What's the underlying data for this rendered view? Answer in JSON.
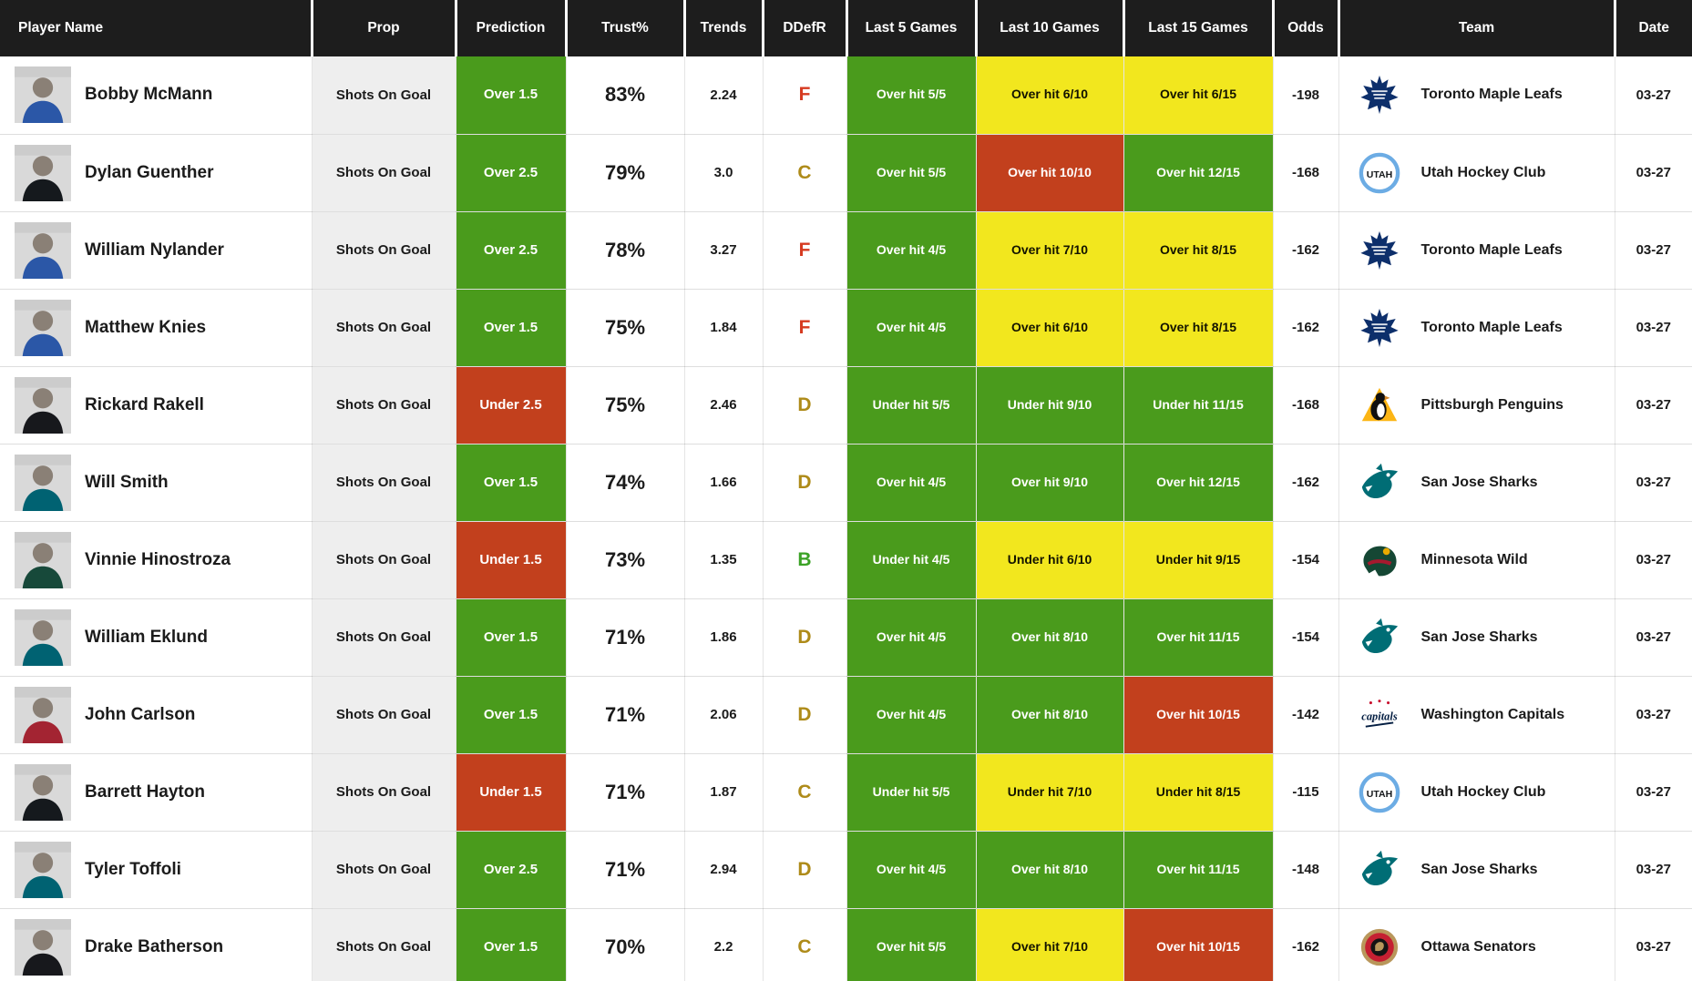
{
  "table": {
    "columns": [
      {
        "key": "player",
        "label": "Player Name"
      },
      {
        "key": "prop",
        "label": "Prop"
      },
      {
        "key": "prediction",
        "label": "Prediction"
      },
      {
        "key": "trust",
        "label": "Trust%"
      },
      {
        "key": "trends",
        "label": "Trends"
      },
      {
        "key": "ddefr",
        "label": "DDefR"
      },
      {
        "key": "last5",
        "label": "Last 5 Games"
      },
      {
        "key": "last10",
        "label": "Last 10 Games"
      },
      {
        "key": "last15",
        "label": "Last 15 Games"
      },
      {
        "key": "odds",
        "label": "Odds"
      },
      {
        "key": "team",
        "label": "Team"
      },
      {
        "key": "date",
        "label": "Date"
      }
    ],
    "rows": [
      {
        "player": "Bobby McMann",
        "prop": "Shots On Goal",
        "prediction": {
          "label": "Over 1.5",
          "color": "green"
        },
        "trust": "83%",
        "trends": "2.24",
        "ddefr": {
          "label": "F",
          "color": "red"
        },
        "last5": {
          "label": "Over hit 5/5",
          "color": "green"
        },
        "last10": {
          "label": "Over hit 6/10",
          "color": "yellow"
        },
        "last15": {
          "label": "Over hit 6/15",
          "color": "yellow"
        },
        "odds": "-198",
        "team": {
          "name": "Toronto Maple Leafs",
          "logo": "toronto"
        },
        "date": "03-27"
      },
      {
        "player": "Dylan Guenther",
        "prop": "Shots On Goal",
        "prediction": {
          "label": "Over 2.5",
          "color": "green"
        },
        "trust": "79%",
        "trends": "3.0",
        "ddefr": {
          "label": "C",
          "color": "gold"
        },
        "last5": {
          "label": "Over hit 5/5",
          "color": "green"
        },
        "last10": {
          "label": "Over hit 10/10",
          "color": "red"
        },
        "last15": {
          "label": "Over hit 12/15",
          "color": "green"
        },
        "odds": "-168",
        "team": {
          "name": "Utah Hockey Club",
          "logo": "utah"
        },
        "date": "03-27"
      },
      {
        "player": "William Nylander",
        "prop": "Shots On Goal",
        "prediction": {
          "label": "Over 2.5",
          "color": "green"
        },
        "trust": "78%",
        "trends": "3.27",
        "ddefr": {
          "label": "F",
          "color": "red"
        },
        "last5": {
          "label": "Over hit 4/5",
          "color": "green"
        },
        "last10": {
          "label": "Over hit 7/10",
          "color": "yellow"
        },
        "last15": {
          "label": "Over hit 8/15",
          "color": "yellow"
        },
        "odds": "-162",
        "team": {
          "name": "Toronto Maple Leafs",
          "logo": "toronto"
        },
        "date": "03-27"
      },
      {
        "player": "Matthew Knies",
        "prop": "Shots On Goal",
        "prediction": {
          "label": "Over 1.5",
          "color": "green"
        },
        "trust": "75%",
        "trends": "1.84",
        "ddefr": {
          "label": "F",
          "color": "red"
        },
        "last5": {
          "label": "Over hit 4/5",
          "color": "green"
        },
        "last10": {
          "label": "Over hit 6/10",
          "color": "yellow"
        },
        "last15": {
          "label": "Over hit 8/15",
          "color": "yellow"
        },
        "odds": "-162",
        "team": {
          "name": "Toronto Maple Leafs",
          "logo": "toronto"
        },
        "date": "03-27"
      },
      {
        "player": "Rickard Rakell",
        "prop": "Shots On Goal",
        "prediction": {
          "label": "Under 2.5",
          "color": "red"
        },
        "trust": "75%",
        "trends": "2.46",
        "ddefr": {
          "label": "D",
          "color": "gold"
        },
        "last5": {
          "label": "Under hit 5/5",
          "color": "green"
        },
        "last10": {
          "label": "Under hit 9/10",
          "color": "green"
        },
        "last15": {
          "label": "Under hit 11/15",
          "color": "green"
        },
        "odds": "-168",
        "team": {
          "name": "Pittsburgh Penguins",
          "logo": "pittsburgh"
        },
        "date": "03-27"
      },
      {
        "player": "Will Smith",
        "prop": "Shots On Goal",
        "prediction": {
          "label": "Over 1.5",
          "color": "green"
        },
        "trust": "74%",
        "trends": "1.66",
        "ddefr": {
          "label": "D",
          "color": "gold"
        },
        "last5": {
          "label": "Over hit 4/5",
          "color": "green"
        },
        "last10": {
          "label": "Over hit 9/10",
          "color": "green"
        },
        "last15": {
          "label": "Over hit 12/15",
          "color": "green"
        },
        "odds": "-162",
        "team": {
          "name": "San Jose Sharks",
          "logo": "sanjose"
        },
        "date": "03-27"
      },
      {
        "player": "Vinnie Hinostroza",
        "prop": "Shots On Goal",
        "prediction": {
          "label": "Under 1.5",
          "color": "red"
        },
        "trust": "73%",
        "trends": "1.35",
        "ddefr": {
          "label": "B",
          "color": "green"
        },
        "last5": {
          "label": "Under hit 4/5",
          "color": "green"
        },
        "last10": {
          "label": "Under hit 6/10",
          "color": "yellow"
        },
        "last15": {
          "label": "Under hit 9/15",
          "color": "yellow"
        },
        "odds": "-154",
        "team": {
          "name": "Minnesota Wild",
          "logo": "minnesota"
        },
        "date": "03-27"
      },
      {
        "player": "William Eklund",
        "prop": "Shots On Goal",
        "prediction": {
          "label": "Over 1.5",
          "color": "green"
        },
        "trust": "71%",
        "trends": "1.86",
        "ddefr": {
          "label": "D",
          "color": "gold"
        },
        "last5": {
          "label": "Over hit 4/5",
          "color": "green"
        },
        "last10": {
          "label": "Over hit 8/10",
          "color": "green"
        },
        "last15": {
          "label": "Over hit 11/15",
          "color": "green"
        },
        "odds": "-154",
        "team": {
          "name": "San Jose Sharks",
          "logo": "sanjose"
        },
        "date": "03-27"
      },
      {
        "player": "John Carlson",
        "prop": "Shots On Goal",
        "prediction": {
          "label": "Over 1.5",
          "color": "green"
        },
        "trust": "71%",
        "trends": "2.06",
        "ddefr": {
          "label": "D",
          "color": "gold"
        },
        "last5": {
          "label": "Over hit 4/5",
          "color": "green"
        },
        "last10": {
          "label": "Over hit 8/10",
          "color": "green"
        },
        "last15": {
          "label": "Over hit 10/15",
          "color": "red"
        },
        "odds": "-142",
        "team": {
          "name": "Washington Capitals",
          "logo": "washington"
        },
        "date": "03-27"
      },
      {
        "player": "Barrett Hayton",
        "prop": "Shots On Goal",
        "prediction": {
          "label": "Under 1.5",
          "color": "red"
        },
        "trust": "71%",
        "trends": "1.87",
        "ddefr": {
          "label": "C",
          "color": "gold"
        },
        "last5": {
          "label": "Under hit 5/5",
          "color": "green"
        },
        "last10": {
          "label": "Under hit 7/10",
          "color": "yellow"
        },
        "last15": {
          "label": "Under hit 8/15",
          "color": "yellow"
        },
        "odds": "-115",
        "team": {
          "name": "Utah Hockey Club",
          "logo": "utah"
        },
        "date": "03-27"
      },
      {
        "player": "Tyler Toffoli",
        "prop": "Shots On Goal",
        "prediction": {
          "label": "Over 2.5",
          "color": "green"
        },
        "trust": "71%",
        "trends": "2.94",
        "ddefr": {
          "label": "D",
          "color": "gold"
        },
        "last5": {
          "label": "Over hit 4/5",
          "color": "green"
        },
        "last10": {
          "label": "Over hit 8/10",
          "color": "green"
        },
        "last15": {
          "label": "Over hit 11/15",
          "color": "green"
        },
        "odds": "-148",
        "team": {
          "name": "San Jose Sharks",
          "logo": "sanjose"
        },
        "date": "03-27"
      },
      {
        "player": "Drake Batherson",
        "prop": "Shots On Goal",
        "prediction": {
          "label": "Over 1.5",
          "color": "green"
        },
        "trust": "70%",
        "trends": "2.2",
        "ddefr": {
          "label": "C",
          "color": "gold"
        },
        "last5": {
          "label": "Over hit 5/5",
          "color": "green"
        },
        "last10": {
          "label": "Over hit 7/10",
          "color": "yellow"
        },
        "last15": {
          "label": "Over hit 10/15",
          "color": "red"
        },
        "odds": "-162",
        "team": {
          "name": "Ottawa Senators",
          "logo": "ottawa"
        },
        "date": "03-27"
      }
    ]
  },
  "colors": {
    "green": "#4a9b1c",
    "yellow": "#f2e71e",
    "red": "#c2401d",
    "grade_red": "#d63a20",
    "grade_gold": "#ae8b19",
    "grade_green": "#3ba226",
    "header_bg": "#1d1d1d",
    "prop_bg": "#eeeeee"
  },
  "teams": {
    "toronto": {
      "name": "Toronto Maple Leafs",
      "primary": "#0d2f6b",
      "jersey": "#2b57a7"
    },
    "utah": {
      "name": "Utah Hockey Club",
      "primary": "#6cace4",
      "jersey": "#15191d"
    },
    "pittsburgh": {
      "name": "Pittsburgh Penguins",
      "primary": "#fcb514",
      "jersey": "#17181c"
    },
    "sanjose": {
      "name": "San Jose Sharks",
      "primary": "#006d75",
      "jersey": "#006272"
    },
    "minnesota": {
      "name": "Minnesota Wild",
      "primary": "#154734",
      "jersey": "#17493a"
    },
    "washington": {
      "name": "Washington Capitals",
      "primary": "#041e42",
      "jersey": "#a32432"
    },
    "ottawa": {
      "name": "Ottawa Senators",
      "primary": "#c52032",
      "jersey": "#17181c"
    }
  }
}
